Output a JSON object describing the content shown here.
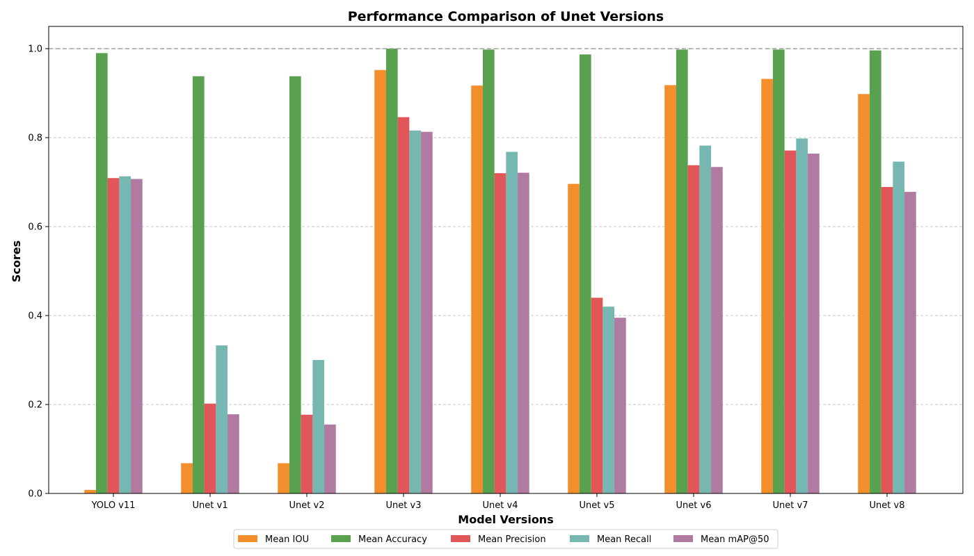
{
  "chart_data": {
    "type": "bar",
    "title": "Performance Comparison of Unet Versions",
    "xlabel": "Model Versions",
    "ylabel": "Scores",
    "ylim": [
      0,
      1.05
    ],
    "yticks": [
      "0.0",
      "0.2",
      "0.4",
      "0.6",
      "0.8",
      "1.0"
    ],
    "reference_line": 1.0,
    "grid": "horizontal dashed",
    "legend_position": "bottom-center",
    "categories": [
      "YOLO v11",
      "Unet v1",
      "Unet v2",
      "Unet v3",
      "Unet v4",
      "Unet v5",
      "Unet v6",
      "Unet v7",
      "Unet v8"
    ],
    "series": [
      {
        "name": "Mean IOU",
        "color": "#f28e2b",
        "values": [
          0.008,
          0.068,
          0.068,
          0.952,
          0.917,
          0.696,
          0.918,
          0.932,
          0.898
        ]
      },
      {
        "name": "Mean Accuracy",
        "color": "#59a14f",
        "values": [
          0.99,
          0.938,
          0.938,
          1.0,
          0.998,
          0.987,
          0.998,
          0.998,
          0.996
        ]
      },
      {
        "name": "Mean Precision",
        "color": "#e15759",
        "values": [
          0.709,
          0.202,
          0.177,
          0.846,
          0.72,
          0.44,
          0.738,
          0.771,
          0.689
        ]
      },
      {
        "name": "Mean Recall",
        "color": "#76b7b2",
        "values": [
          0.713,
          0.333,
          0.3,
          0.816,
          0.768,
          0.42,
          0.782,
          0.798,
          0.746
        ]
      },
      {
        "name": "Mean mAP@50",
        "color": "#b07aa1",
        "values": [
          0.707,
          0.178,
          0.155,
          0.813,
          0.721,
          0.395,
          0.734,
          0.764,
          0.678
        ]
      }
    ]
  }
}
